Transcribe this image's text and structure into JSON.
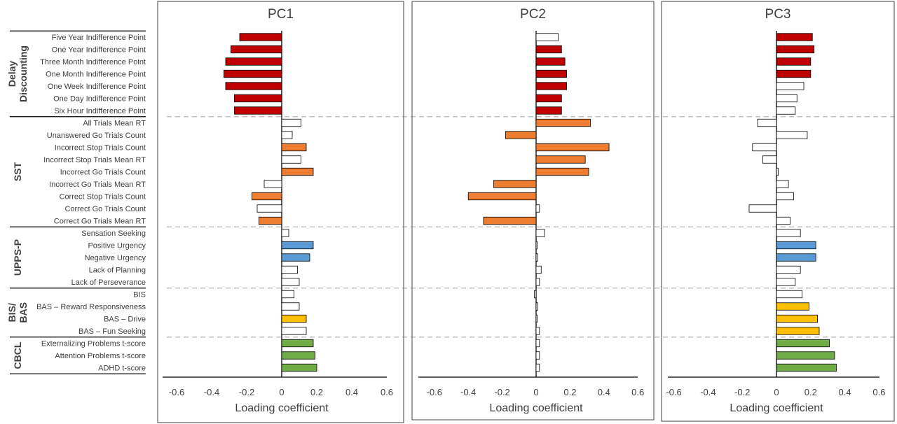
{
  "chart_data": {
    "type": "bar",
    "orientation": "horizontal",
    "xlabel": "Loading coefficient",
    "xlim": [
      -0.6,
      0.6
    ],
    "xticks": [
      "-0.6",
      "-0.4",
      "-0.2",
      "0",
      "0.2",
      "0.4",
      "0.6"
    ],
    "grid": false,
    "legend": "none",
    "groups": [
      {
        "name": "Delay Discounting",
        "label_lines": [
          "Delay",
          "Discounting"
        ],
        "color": "#c00000",
        "count": 7
      },
      {
        "name": "SST",
        "label_lines": [
          "SST"
        ],
        "color": "#ed7d31",
        "count": 9
      },
      {
        "name": "UPPS-P",
        "label_lines": [
          "UPPS-P"
        ],
        "color": "#5b9bd5",
        "count": 5
      },
      {
        "name": "BIS/BAS",
        "label_lines": [
          "BIS/",
          "BAS"
        ],
        "color": "#ffc000",
        "count": 4
      },
      {
        "name": "CBCL",
        "label_lines": [
          "CBCL"
        ],
        "color": "#70ad47",
        "count": 3
      }
    ],
    "categories": [
      "Five Year Indifference Point",
      "One Year Indifference Point",
      "Three Month Indifference Point",
      "One Month Indifference Point",
      "One Week Indifference Point",
      "One Day Indifference Point",
      "Six Hour Indifference Point",
      "All Trials Mean RT",
      "Unanswered Go Trials Count",
      "Incorrect Stop Trials Count",
      "Incorrect Stop Trials Mean RT",
      "Incorrect Go Trials Count",
      "Incorrect Go Trials Mean RT",
      "Correct Stop Trials Count",
      "Correct Go Trials Count",
      "Correct Go Trials Mean RT",
      "Sensation Seeking",
      "Positive Urgency",
      "Negative Urgency",
      "Lack of Planning",
      "Lack of Perseverance",
      "BIS",
      "BAS – Reward Responsiveness",
      "BAS – Drive",
      "BAS – Fun Seeking",
      "Externalizing Problems t-score",
      "Attention Problems t-score",
      "ADHD t-score"
    ],
    "panels": [
      {
        "title": "PC1",
        "values": [
          -0.24,
          -0.29,
          -0.32,
          -0.33,
          -0.32,
          -0.27,
          -0.27,
          0.11,
          0.06,
          0.14,
          0.11,
          0.18,
          -0.1,
          -0.17,
          -0.14,
          -0.13,
          0.04,
          0.18,
          0.16,
          0.09,
          0.1,
          0.07,
          0.1,
          0.14,
          0.14,
          0.18,
          0.19,
          0.2
        ],
        "highlighted": [
          true,
          true,
          true,
          true,
          true,
          true,
          true,
          false,
          false,
          true,
          false,
          true,
          false,
          true,
          false,
          true,
          false,
          true,
          true,
          false,
          false,
          false,
          false,
          true,
          false,
          true,
          true,
          true
        ]
      },
      {
        "title": "PC2",
        "values": [
          0.13,
          0.15,
          0.17,
          0.18,
          0.18,
          0.15,
          0.15,
          0.32,
          -0.18,
          0.43,
          0.29,
          0.31,
          -0.25,
          -0.4,
          0.02,
          -0.31,
          0.05,
          0.0,
          0.01,
          0.03,
          0.02,
          -0.01,
          0.01,
          0.0,
          0.02,
          0.02,
          0.02,
          0.02
        ],
        "highlighted": [
          false,
          true,
          true,
          true,
          true,
          true,
          true,
          true,
          true,
          true,
          true,
          true,
          true,
          true,
          false,
          true,
          false,
          false,
          false,
          false,
          false,
          false,
          false,
          false,
          false,
          false,
          false,
          false
        ]
      },
      {
        "title": "PC3",
        "values": [
          0.21,
          0.22,
          0.2,
          0.2,
          0.16,
          0.12,
          0.11,
          -0.11,
          0.18,
          -0.14,
          -0.08,
          0.01,
          0.07,
          0.1,
          -0.16,
          0.08,
          0.14,
          0.23,
          0.23,
          0.14,
          0.11,
          0.15,
          0.19,
          0.24,
          0.25,
          0.31,
          0.34,
          0.35
        ],
        "highlighted": [
          true,
          true,
          true,
          true,
          false,
          false,
          false,
          false,
          false,
          false,
          false,
          false,
          false,
          false,
          false,
          false,
          false,
          true,
          true,
          false,
          false,
          false,
          true,
          true,
          true,
          true,
          true,
          true
        ]
      }
    ]
  }
}
